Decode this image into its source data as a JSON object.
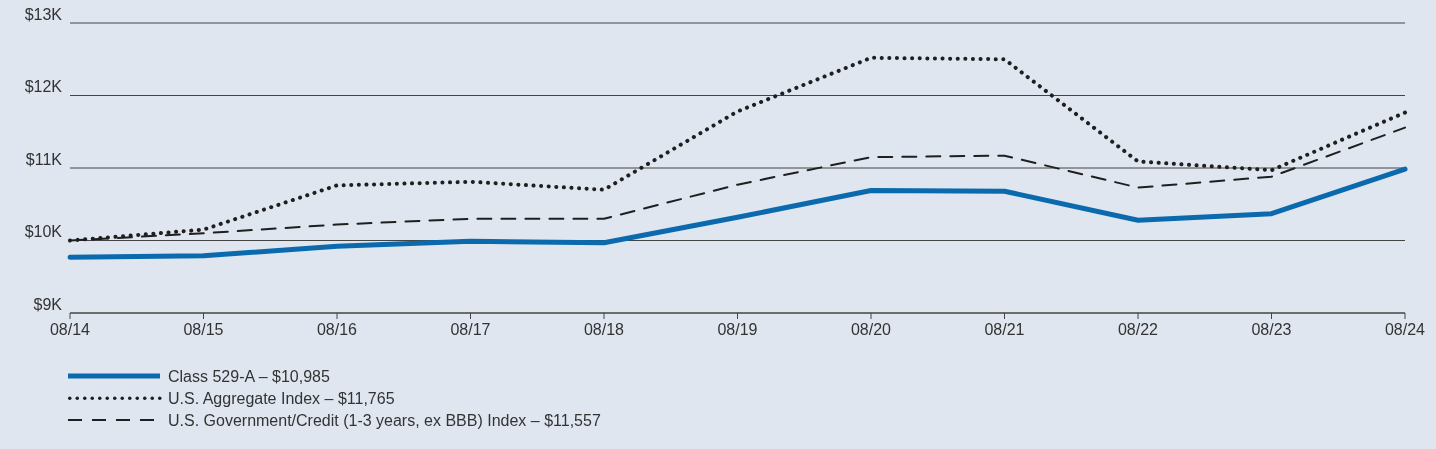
{
  "chart_data": {
    "type": "line",
    "categories": [
      "08/14",
      "08/15",
      "08/16",
      "08/17",
      "08/18",
      "08/19",
      "08/20",
      "08/21",
      "08/22",
      "08/23",
      "08/24"
    ],
    "series": [
      {
        "name": "Class 529-A – $10,985",
        "color": "#0a6aad",
        "line_style": "solid",
        "values": [
          9770,
          9790,
          9920,
          9990,
          9970,
          10320,
          10690,
          10680,
          10280,
          10370,
          10985
        ]
      },
      {
        "name": "U.S. Aggregate Index – $11,765",
        "color": "#1f1f1f",
        "line_style": "dotted",
        "values": [
          10000,
          10150,
          10760,
          10810,
          10700,
          11780,
          12520,
          12500,
          11090,
          10970,
          11765
        ]
      },
      {
        "name": "U.S. Government/Credit (1-3 years, ex BBB) Index – $11,557",
        "color": "#1f1f1f",
        "line_style": "dashed",
        "values": [
          10000,
          10100,
          10220,
          10300,
          10300,
          10770,
          11150,
          11170,
          10730,
          10880,
          11557
        ]
      }
    ],
    "ylim": [
      9000,
      13000
    ],
    "yticks": [
      {
        "value": 9000,
        "label": "$9K"
      },
      {
        "value": 10000,
        "label": "$10K"
      },
      {
        "value": 11000,
        "label": "$11K"
      },
      {
        "value": 12000,
        "label": "$12K"
      },
      {
        "value": 13000,
        "label": "$13K"
      }
    ],
    "grid": "y",
    "legend": "bottom",
    "marker": "none"
  }
}
